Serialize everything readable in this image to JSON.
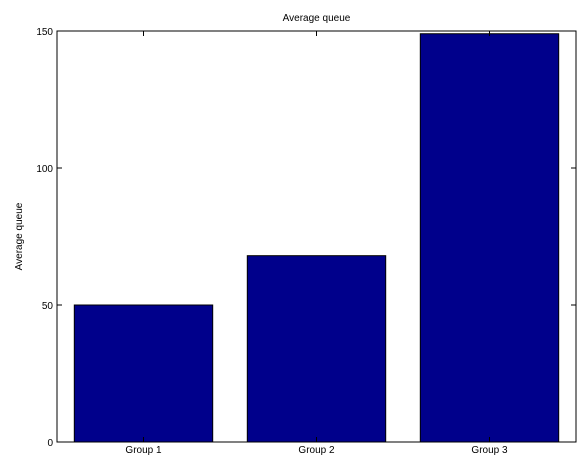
{
  "chart_data": {
    "type": "bar",
    "title": "Average queue",
    "xlabel": "",
    "ylabel": "Average queue",
    "categories": [
      "Group 1",
      "Group 2",
      "Group 3"
    ],
    "values": [
      50,
      68,
      149
    ],
    "ylim": [
      0,
      150
    ],
    "yticks": [
      0,
      50,
      100,
      150
    ],
    "grid": false,
    "colors": {
      "bar_fill": "#00008b",
      "bar_edge": "#000000",
      "axes": "#000000"
    }
  }
}
